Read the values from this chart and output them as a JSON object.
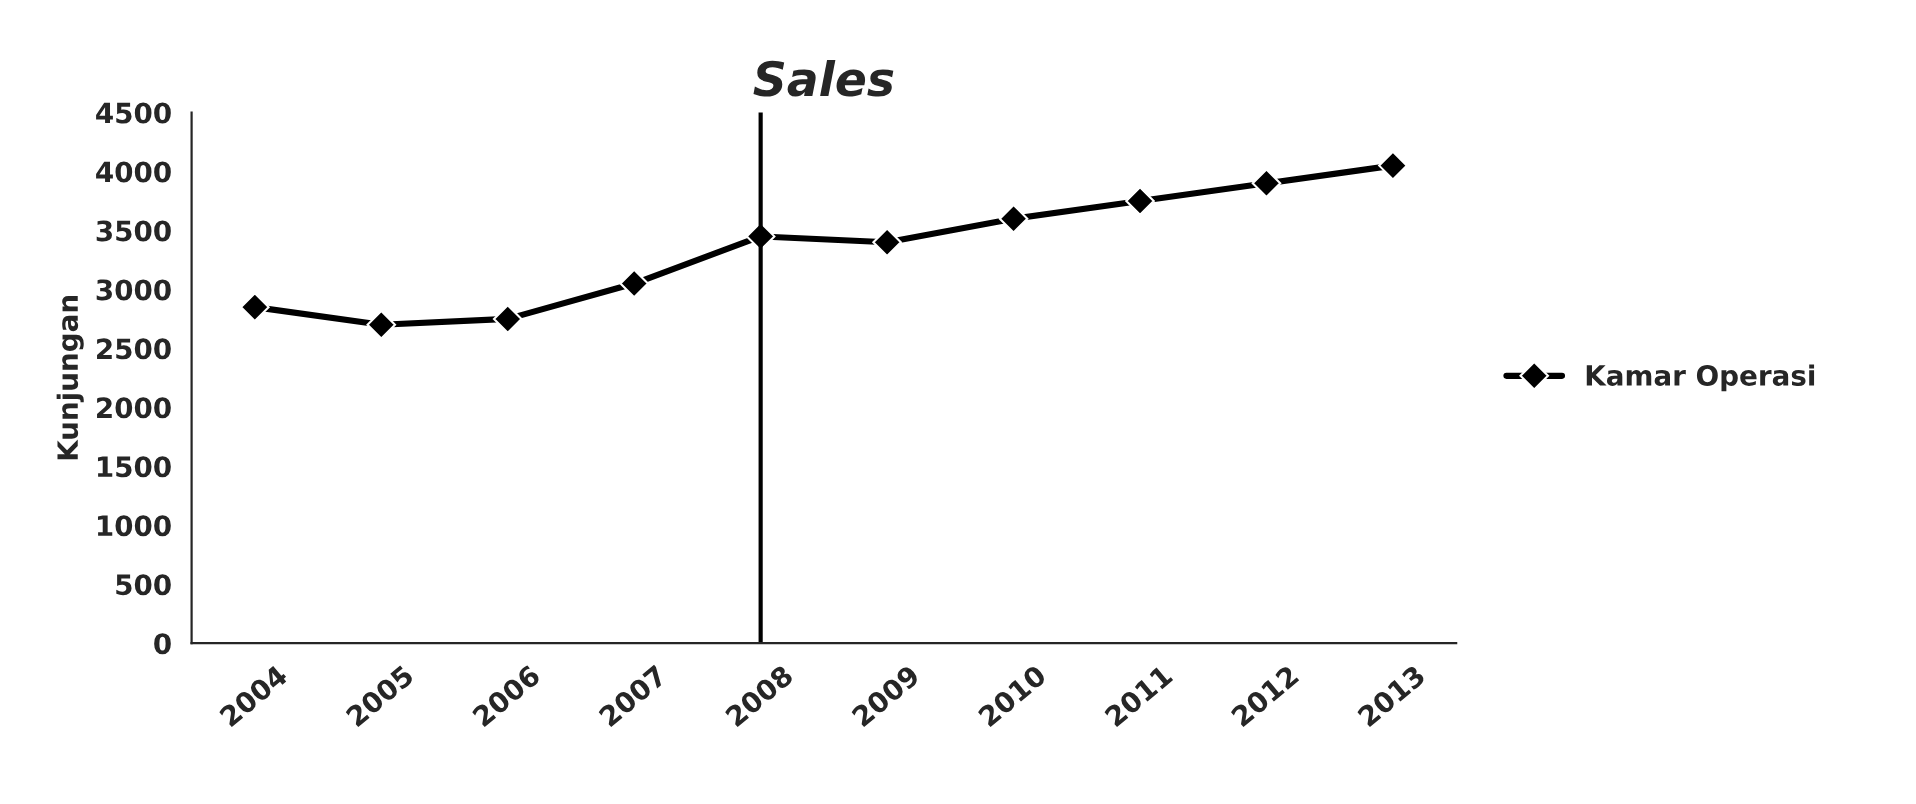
{
  "chart_data": {
    "type": "line",
    "title": "Sales",
    "ylabel": "Kunjungan",
    "categories": [
      "2004",
      "2005",
      "2006",
      "2007",
      "2008",
      "2009",
      "2010",
      "2011",
      "2012",
      "2013"
    ],
    "series": [
      {
        "name": "Kamar Operasi",
        "color": "#000000",
        "values": [
          2850,
          2700,
          2750,
          3050,
          3450,
          3400,
          3600,
          3750,
          3900,
          4050
        ]
      }
    ],
    "ylim": [
      0,
      4500
    ],
    "yticks": [
      0,
      500,
      1000,
      1500,
      2000,
      2500,
      3000,
      3500,
      4000,
      4500
    ],
    "ref_lines": [
      {
        "axis": "x",
        "value": "2008",
        "color": "#000000"
      }
    ],
    "marker": "diamond",
    "line_style": "solid",
    "legend": "right",
    "grid": false
  }
}
